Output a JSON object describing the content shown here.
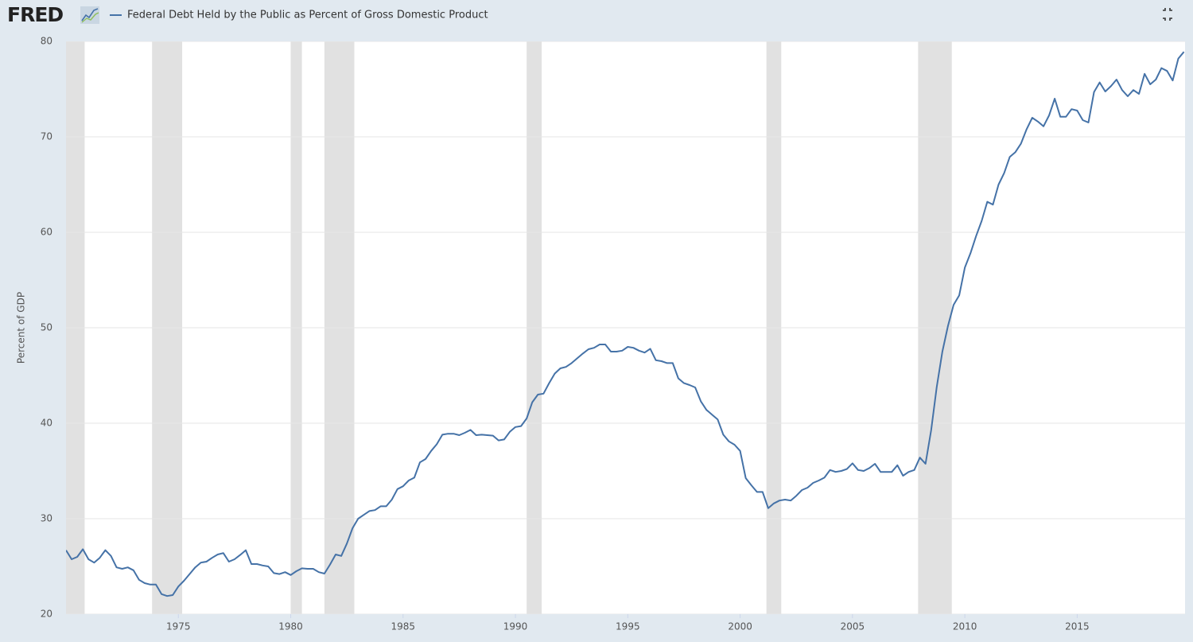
{
  "logo": "FRED",
  "chart_data": {
    "type": "line",
    "ylabel": "Percent of GDP",
    "xlim": [
      1970,
      2019.8
    ],
    "ylim": [
      20,
      80
    ],
    "xticks": [
      1975,
      1980,
      1985,
      1990,
      1995,
      2000,
      2005,
      2010,
      2015
    ],
    "yticks": [
      20,
      30,
      40,
      50,
      60,
      70,
      80
    ],
    "grid": true,
    "recessions": [
      [
        1969.92,
        1970.83
      ],
      [
        1973.83,
        1975.17
      ],
      [
        1980.0,
        1980.5
      ],
      [
        1981.5,
        1982.83
      ],
      [
        1990.5,
        1991.17
      ],
      [
        2001.17,
        2001.83
      ],
      [
        2007.92,
        2009.42
      ]
    ],
    "recession_color": "#e1e1e1",
    "x": [
      1970,
      1970.25,
      1970.5,
      1970.75,
      1971,
      1971.25,
      1971.5,
      1971.75,
      1972,
      1972.25,
      1972.5,
      1972.75,
      1973,
      1973.25,
      1973.5,
      1973.75,
      1974,
      1974.25,
      1974.5,
      1974.75,
      1975,
      1975.25,
      1975.5,
      1975.75,
      1976,
      1976.25,
      1976.5,
      1976.75,
      1977,
      1977.25,
      1977.5,
      1977.75,
      1978,
      1978.25,
      1978.5,
      1978.75,
      1979,
      1979.25,
      1979.5,
      1979.75,
      1980,
      1980.25,
      1980.5,
      1980.75,
      1981,
      1981.25,
      1981.5,
      1981.75,
      1982,
      1982.25,
      1982.5,
      1982.75,
      1983,
      1983.25,
      1983.5,
      1983.75,
      1984,
      1984.25,
      1984.5,
      1984.75,
      1985,
      1985.25,
      1985.5,
      1985.75,
      1986,
      1986.25,
      1986.5,
      1986.75,
      1987,
      1987.25,
      1987.5,
      1987.75,
      1988,
      1988.25,
      1988.5,
      1988.75,
      1989,
      1989.25,
      1989.5,
      1989.75,
      1990,
      1990.25,
      1990.5,
      1990.75,
      1991,
      1991.25,
      1991.5,
      1991.75,
      1992,
      1992.25,
      1992.5,
      1992.75,
      1993,
      1993.25,
      1993.5,
      1993.75,
      1994,
      1994.25,
      1994.5,
      1994.75,
      1995,
      1995.25,
      1995.5,
      1995.75,
      1996,
      1996.25,
      1996.5,
      1996.75,
      1997,
      1997.25,
      1997.5,
      1997.75,
      1998,
      1998.25,
      1998.5,
      1998.75,
      1999,
      1999.25,
      1999.5,
      1999.75,
      2000,
      2000.25,
      2000.5,
      2000.75,
      2001,
      2001.25,
      2001.5,
      2001.75,
      2002,
      2002.25,
      2002.5,
      2002.75,
      2003,
      2003.25,
      2003.5,
      2003.75,
      2004,
      2004.25,
      2004.5,
      2004.75,
      2005,
      2005.25,
      2005.5,
      2005.75,
      2006,
      2006.25,
      2006.5,
      2006.75,
      2007,
      2007.25,
      2007.5,
      2007.75,
      2008,
      2008.25,
      2008.5,
      2008.75,
      2009,
      2009.25,
      2009.5,
      2009.75,
      2010,
      2010.25,
      2010.5,
      2010.75,
      2011,
      2011.25,
      2011.5,
      2011.75,
      2012,
      2012.25,
      2012.5,
      2012.75,
      2013,
      2013.25,
      2013.5,
      2013.75,
      2014,
      2014.25,
      2014.5,
      2014.75,
      2015,
      2015.25,
      2015.5,
      2015.75,
      2016,
      2016.25,
      2016.5,
      2016.75,
      2017,
      2017.25,
      2017.5,
      2017.75,
      2018,
      2018.25,
      2018.5,
      2018.75,
      2019,
      2019.25,
      2019.5,
      2019.75
    ],
    "series": [
      {
        "name": "Federal Debt Held by the Public as Percent of Gross Domestic Product",
        "color": "#4572a7",
        "values": [
          26.7,
          25.75,
          26,
          26.8,
          25.75,
          25.4,
          25.9,
          26.7,
          26.1,
          24.9,
          24.75,
          24.9,
          24.6,
          23.6,
          23.25,
          23.1,
          23.1,
          22.1,
          21.9,
          22,
          22.9,
          23.5,
          24.2,
          24.9,
          25.4,
          25.5,
          25.9,
          26.25,
          26.4,
          25.5,
          25.75,
          26.2,
          26.7,
          25.25,
          25.25,
          25.1,
          25,
          24.3,
          24.2,
          24.4,
          24.1,
          24.5,
          24.8,
          24.75,
          24.75,
          24.4,
          24.25,
          25.2,
          26.25,
          26.1,
          27.4,
          29,
          30,
          30.4,
          30.8,
          30.9,
          31.3,
          31.3,
          32,
          33.1,
          33.4,
          34,
          34.3,
          35.9,
          36.25,
          37.1,
          37.8,
          38.8,
          38.9,
          38.9,
          38.75,
          39,
          39.3,
          38.75,
          38.8,
          38.75,
          38.7,
          38.2,
          38.3,
          39.1,
          39.6,
          39.7,
          40.5,
          42.2,
          43,
          43.1,
          44.2,
          45.2,
          45.75,
          45.9,
          46.3,
          46.8,
          47.3,
          47.75,
          47.9,
          48.25,
          48.25,
          47.5,
          47.5,
          47.6,
          48,
          47.9,
          47.6,
          47.4,
          47.8,
          46.6,
          46.5,
          46.3,
          46.3,
          44.7,
          44.2,
          44,
          43.75,
          42.3,
          41.4,
          40.9,
          40.4,
          38.8,
          38.1,
          37.75,
          37.1,
          34.25,
          33.5,
          32.8,
          32.8,
          31.1,
          31.6,
          31.9,
          32,
          31.9,
          32.4,
          33,
          33.25,
          33.75,
          34,
          34.3,
          35.1,
          34.9,
          35,
          35.2,
          35.8,
          35.1,
          35,
          35.3,
          35.75,
          34.9,
          34.9,
          34.9,
          35.6,
          34.5,
          34.9,
          35.1,
          36.4,
          35.75,
          39.25,
          43.8,
          47.5,
          50.2,
          52.4,
          53.4,
          56.3,
          57.8,
          59.6,
          61.2,
          63.2,
          62.9,
          65,
          66.2,
          67.9,
          68.4,
          69.3,
          70.8,
          72,
          71.6,
          71.1,
          72.25,
          74,
          72.1,
          72.1,
          72.9,
          72.75,
          71.75,
          71.5,
          74.7,
          75.7,
          74.75,
          75.3,
          76,
          74.9,
          74.25,
          74.9,
          74.5,
          76.6,
          75.5,
          76,
          77.2,
          76.9,
          75.9,
          78.2,
          78.9
        ]
      }
    ]
  }
}
